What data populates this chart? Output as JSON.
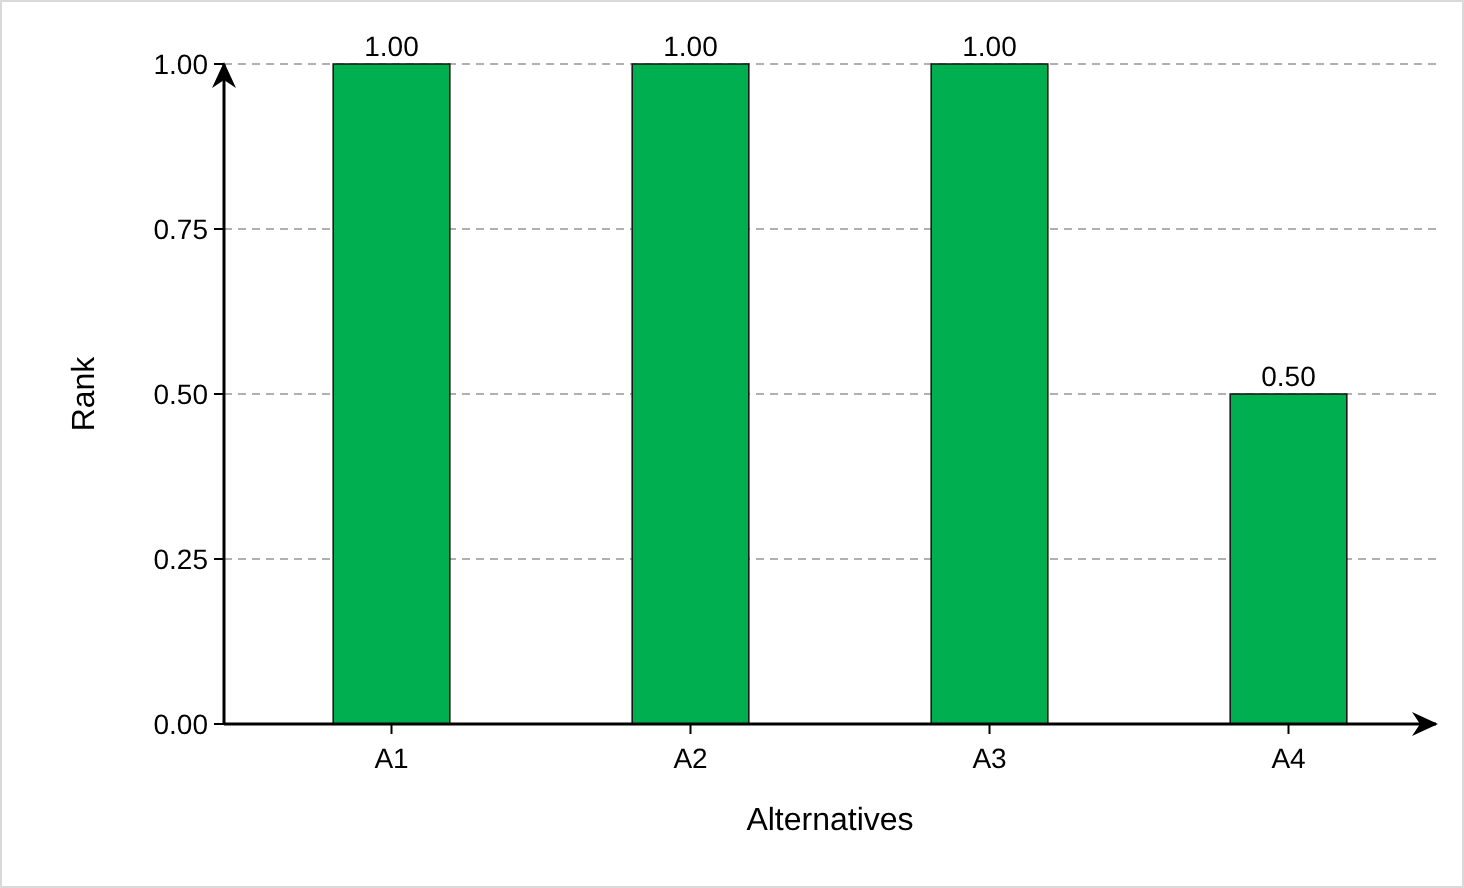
{
  "chart_data": {
    "type": "bar",
    "xlabel": "Alternatives",
    "ylabel": "Rank",
    "categories": [
      "A1",
      "A2",
      "A3",
      "A4"
    ],
    "values": [
      1,
      1,
      1,
      0.5
    ],
    "value_labels": [
      "1.00",
      "1.00",
      "1.00",
      "0.50"
    ],
    "color": "#00b050",
    "ylim": [
      0,
      1
    ],
    "yticks": [
      {
        "value": 0,
        "label": "0.00"
      },
      {
        "value": 0.25,
        "label": "0.25"
      },
      {
        "value": 0.5,
        "label": "0.50"
      },
      {
        "value": 0.75,
        "label": "0.75"
      },
      {
        "value": 1,
        "label": "1.00"
      }
    ],
    "grid": "y"
  }
}
